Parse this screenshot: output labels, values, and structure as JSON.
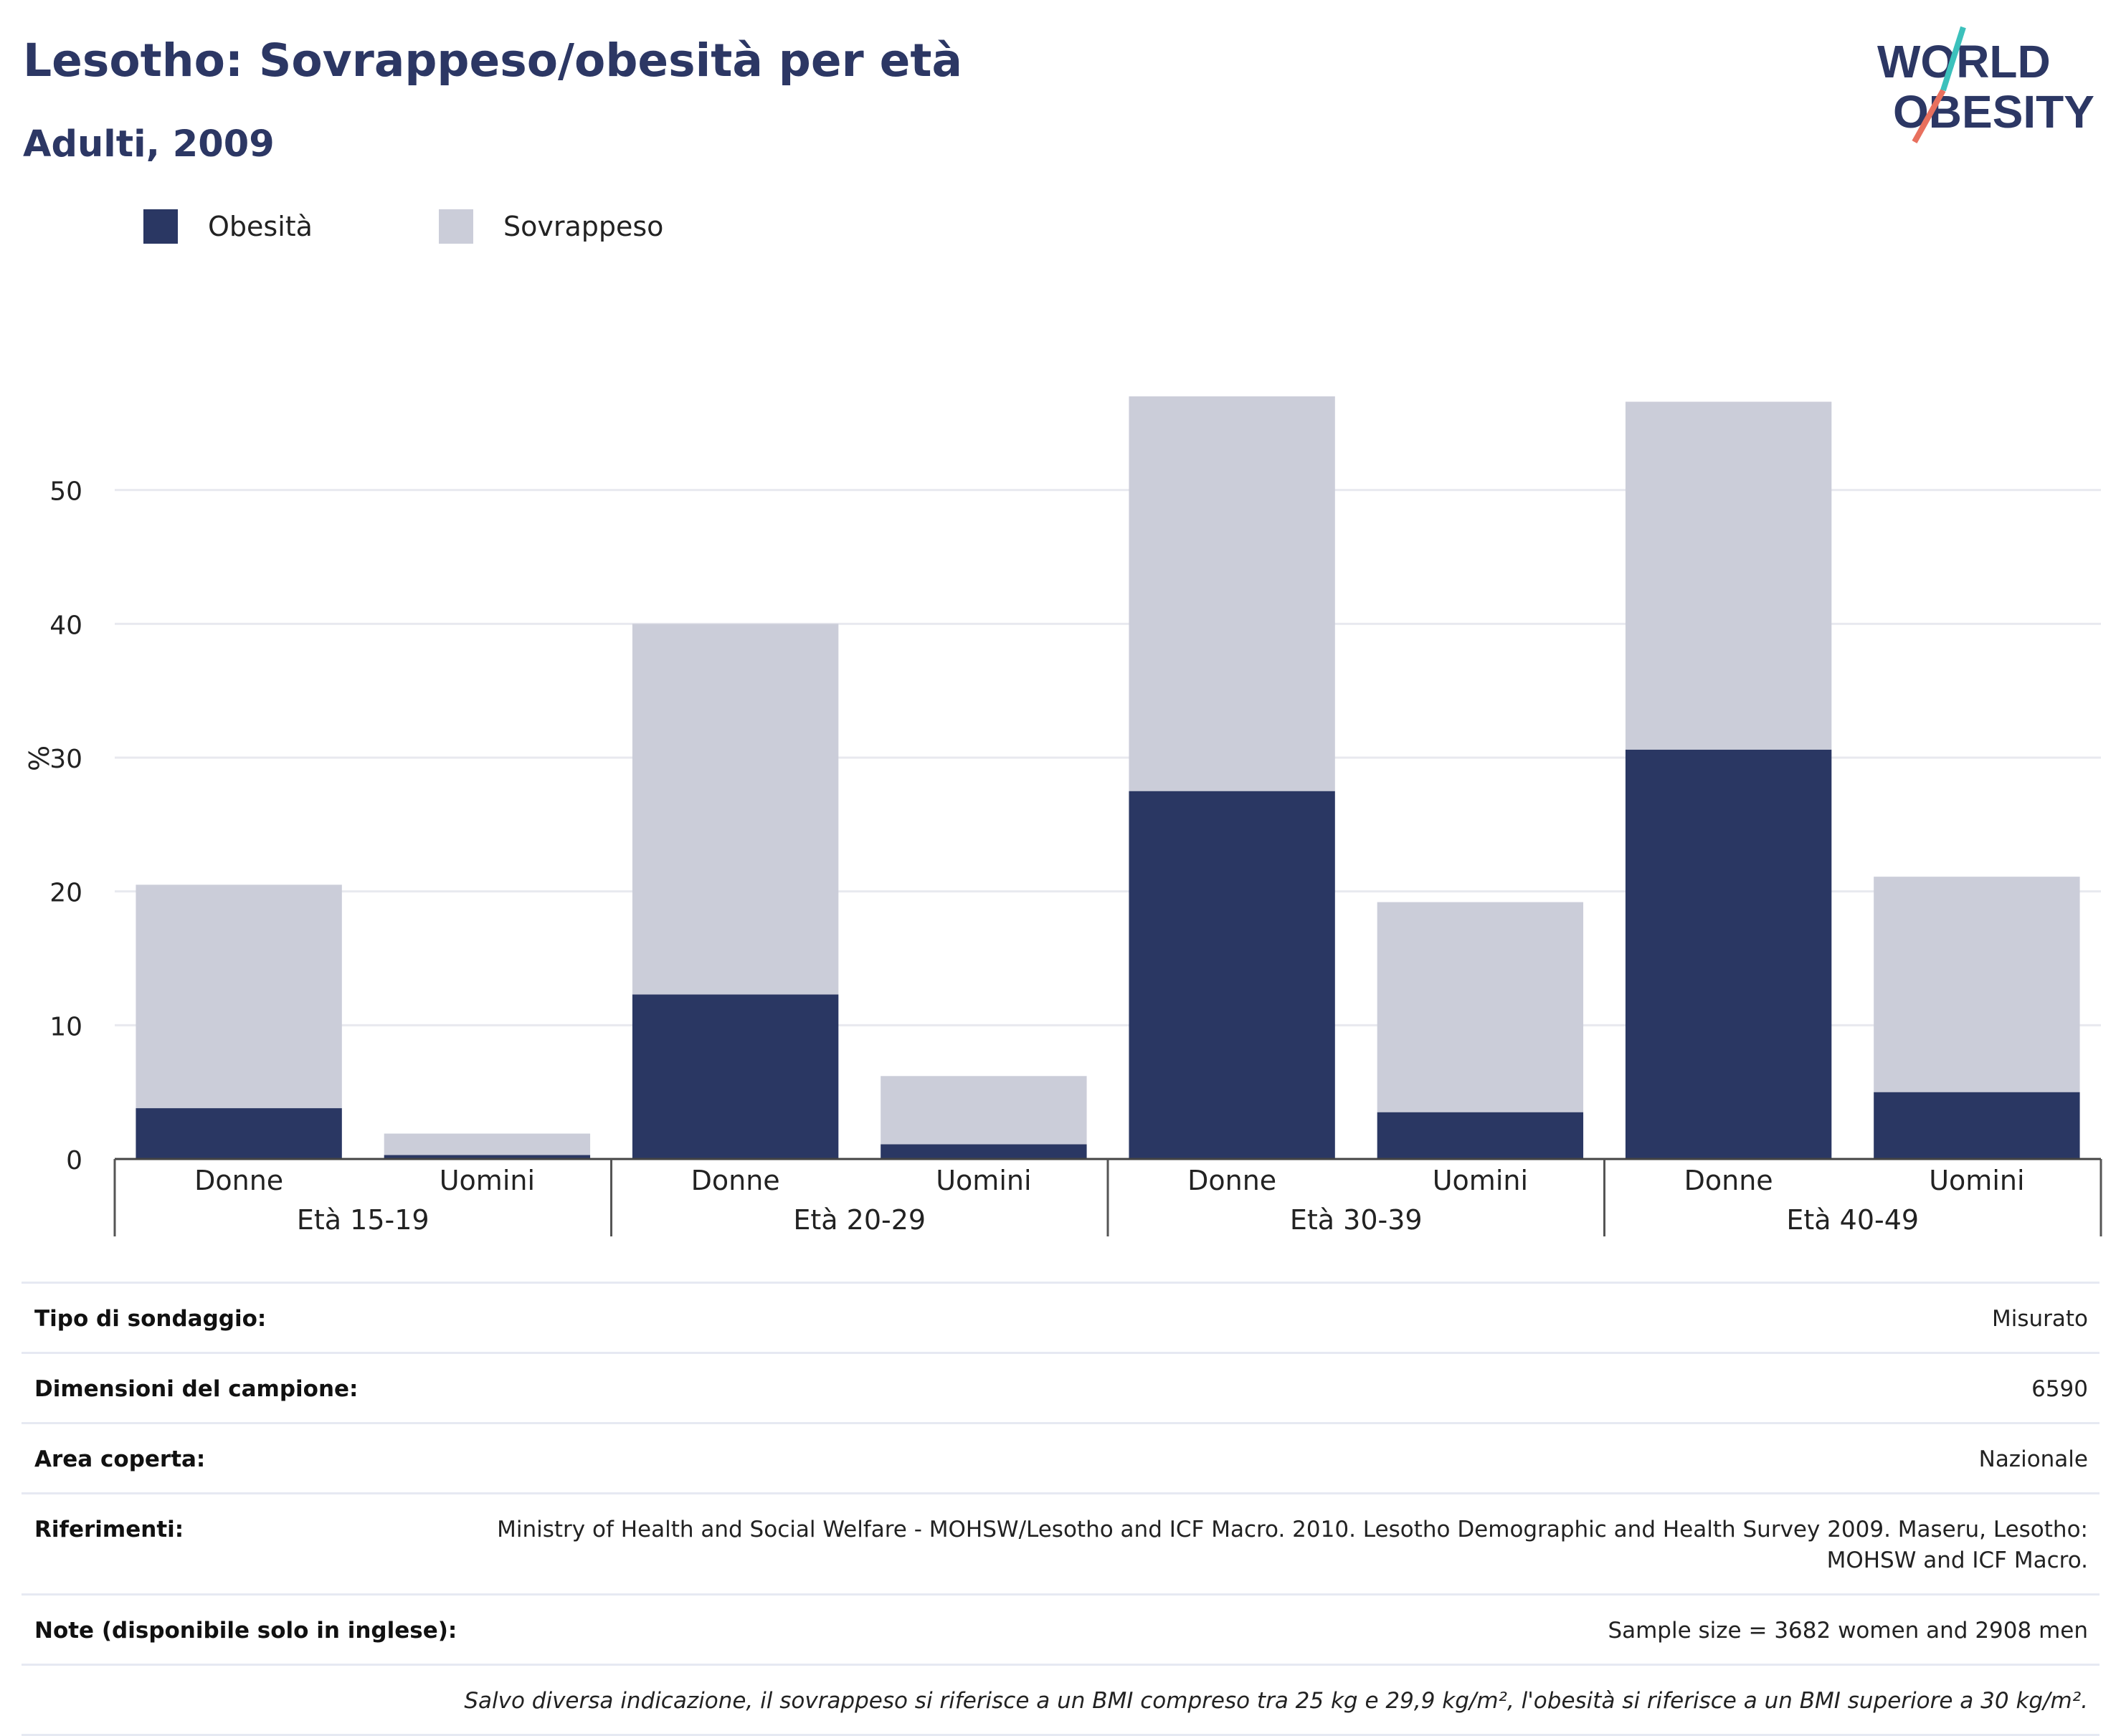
{
  "header": {
    "title": "Lesotho: Sovrappeso/obesità per età",
    "subtitle": "Adulti, 2009"
  },
  "logo": {
    "line1": "WORLD",
    "line2": "OBESITY"
  },
  "legend": [
    {
      "label": "Obesità",
      "color": "#2a3763"
    },
    {
      "label": "Sovrappeso",
      "color": "#cbcdd9"
    }
  ],
  "chart_data": {
    "type": "bar",
    "stacked": true,
    "ylabel": "%",
    "ylim": [
      0,
      60
    ],
    "yticks": [
      0,
      10,
      20,
      30,
      40,
      50
    ],
    "grid": true,
    "legend_position": "top-left",
    "groups": [
      "Età 15-19",
      "Età 20-29",
      "Età 30-39",
      "Età 40-49"
    ],
    "categories": [
      "Donne",
      "Uomini",
      "Donne",
      "Uomini",
      "Donne",
      "Uomini",
      "Donne",
      "Uomini"
    ],
    "series": [
      {
        "name": "Obesità",
        "color": "#2a3763",
        "values": [
          3.8,
          0.3,
          12.3,
          1.1,
          27.5,
          3.5,
          30.6,
          5.0
        ]
      },
      {
        "name": "Sovrappeso",
        "color": "#cbcdd9",
        "values": [
          16.7,
          1.6,
          27.7,
          5.1,
          29.5,
          15.7,
          26.0,
          16.1
        ]
      }
    ]
  },
  "info": {
    "rows": [
      {
        "label": "Tipo di sondaggio:",
        "value": "Misurato"
      },
      {
        "label": "Dimensioni del campione:",
        "value": "6590"
      },
      {
        "label": "Area coperta:",
        "value": "Nazionale"
      },
      {
        "label": "Riferimenti:",
        "value": "Ministry of Health and Social Welfare - MOHSW/Lesotho and ICF Macro. 2010. Lesotho Demographic and Health Survey 2009. Maseru, Lesotho: MOHSW and ICF Macro."
      },
      {
        "label": "Note (disponibile solo in inglese):",
        "value": "Sample size = 3682 women and 2908 men"
      }
    ],
    "footnote": "Salvo diversa indicazione, il sovrappeso si riferisce a un BMI compreso tra 25 kg e 29,9 kg/m², l'obesità si riferisce a un BMI superiore a 30 kg/m²."
  }
}
